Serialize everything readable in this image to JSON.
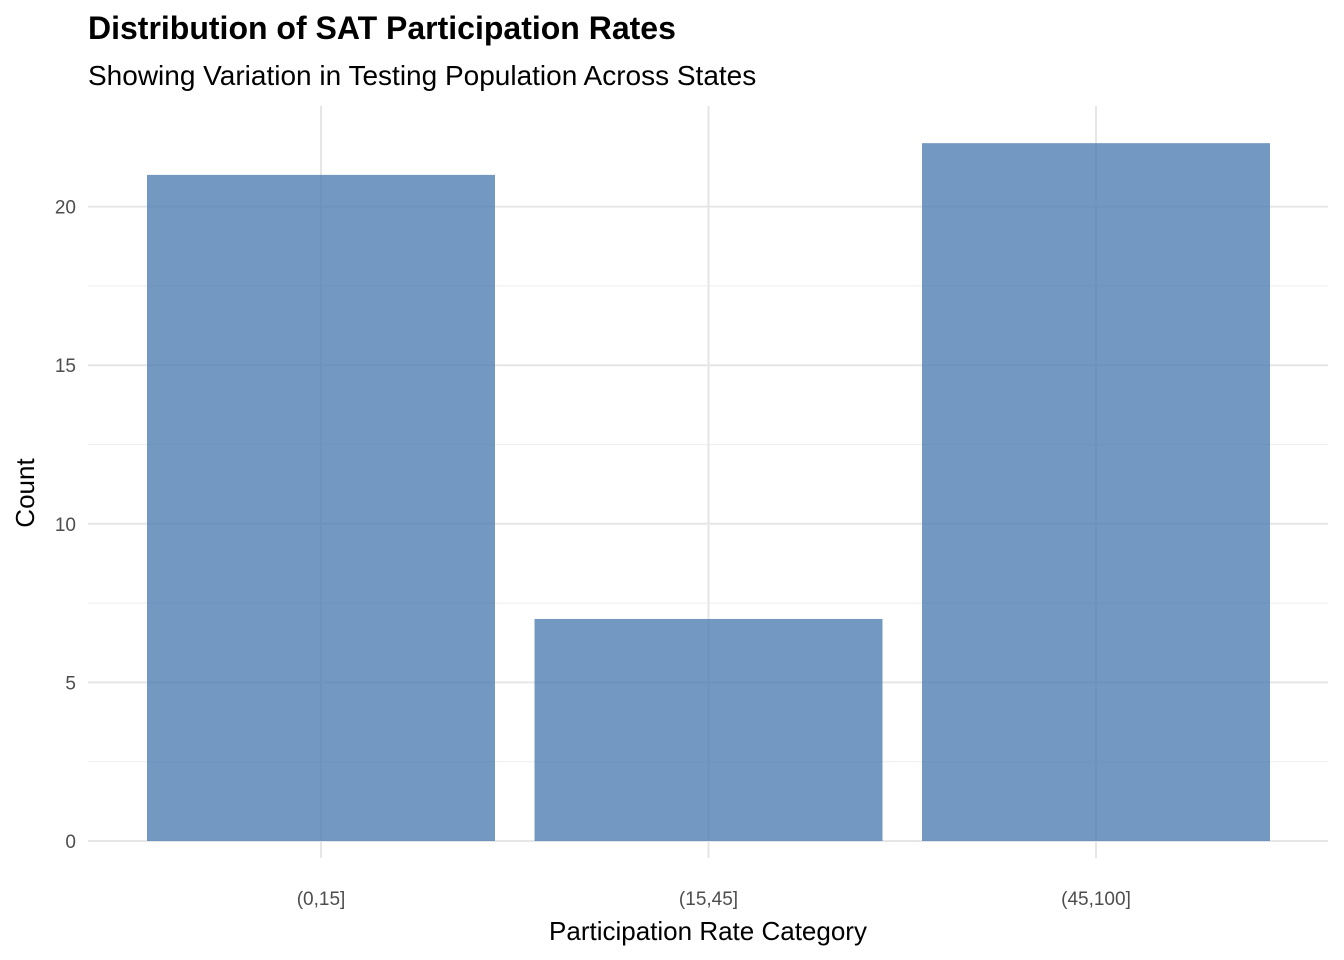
{
  "chart_data": {
    "type": "bar",
    "title": "Distribution of SAT Participation Rates",
    "subtitle": "Showing Variation in Testing Population Across States",
    "xlabel": "Participation Rate Category",
    "ylabel": "Count",
    "categories": [
      "(0,15]",
      "(15,45]",
      "(45,100]"
    ],
    "values": [
      21,
      7,
      22
    ],
    "ylim": [
      0,
      22.5
    ],
    "yticks": [
      0,
      5,
      10,
      15,
      20
    ],
    "grid": true,
    "bar_color": "#4b7bb0",
    "bar_opacity": 0.78,
    "grid_color": "#e6e6e6"
  }
}
